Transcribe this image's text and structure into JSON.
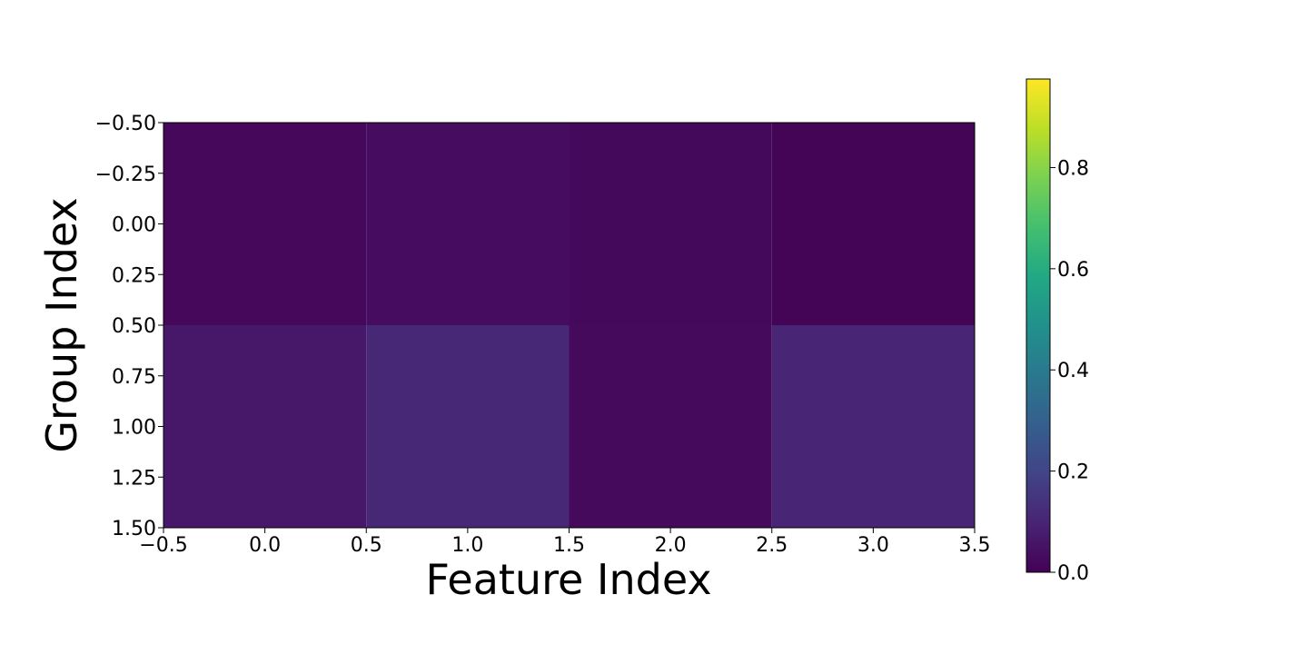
{
  "chart_data": {
    "type": "heatmap",
    "title": "",
    "xlabel": "Feature Index",
    "ylabel": "Group Index",
    "x_centers": [
      0,
      1,
      2,
      3
    ],
    "y_centers": [
      0,
      1
    ],
    "values": [
      [
        0.02,
        0.032,
        0.022,
        0.01
      ],
      [
        0.065,
        0.11,
        0.025,
        0.1
      ]
    ],
    "xlim": [
      -0.5,
      3.5
    ],
    "ylim": [
      1.5,
      -0.5
    ],
    "xticks": [
      "−0.5",
      "0.0",
      "0.5",
      "1.0",
      "1.5",
      "2.0",
      "2.5",
      "3.0",
      "3.5"
    ],
    "xtick_values": [
      -0.5,
      0,
      0.5,
      1,
      1.5,
      2,
      2.5,
      3,
      3.5
    ],
    "yticks": [
      "−0.50",
      "−0.25",
      "0.00",
      "0.25",
      "0.50",
      "0.75",
      "1.00",
      "1.25",
      "1.50"
    ],
    "ytick_values": [
      -0.5,
      -0.25,
      0,
      0.25,
      0.5,
      0.75,
      1,
      1.25,
      1.5
    ],
    "colorbar": {
      "colormap": "viridis",
      "vmin": 0.0,
      "vmax": 0.975,
      "ticks": [
        "0.0",
        "0.2",
        "0.4",
        "0.6",
        "0.8"
      ],
      "tick_values": [
        0,
        0.2,
        0.4,
        0.6,
        0.8
      ]
    }
  }
}
